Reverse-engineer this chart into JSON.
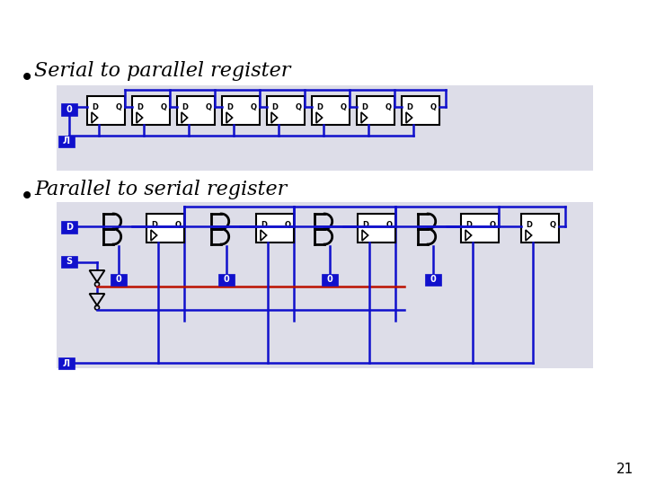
{
  "bg_color": "#ffffff",
  "panel_color": "#dddde8",
  "blue": "#1010cc",
  "red": "#bb1100",
  "black": "#000000",
  "white": "#ffffff",
  "title1": "Serial to parallel register",
  "title2": "Parallel to serial register",
  "page_num": "21",
  "lw": 1.8
}
